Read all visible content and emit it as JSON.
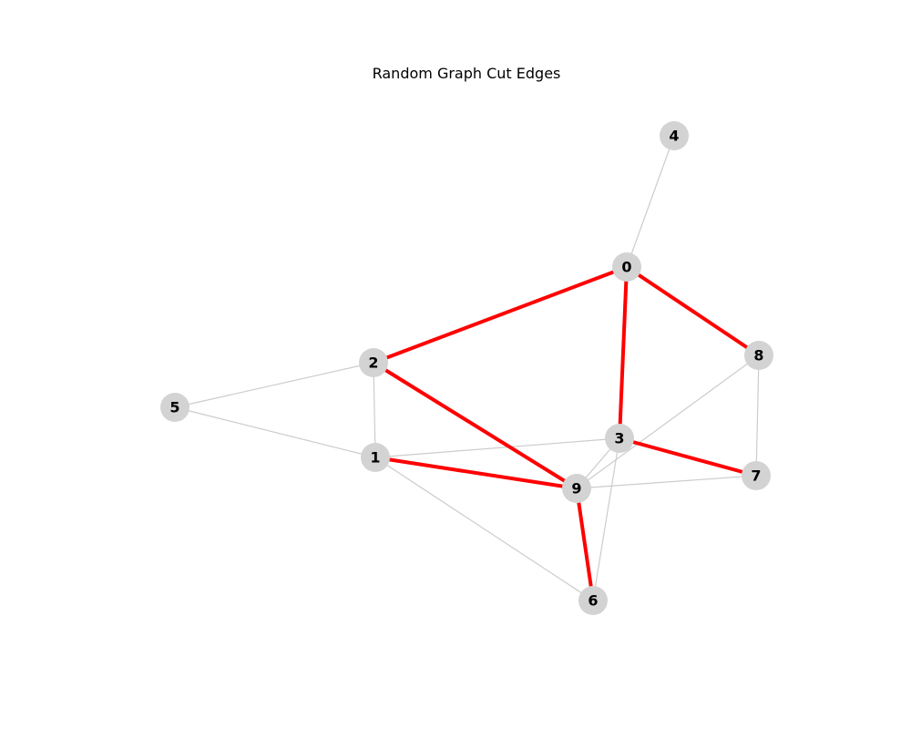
{
  "title": "Random Graph Cut Edges",
  "colors": {
    "node_fill": "#d3d3d3",
    "normal_edge": "#cccccc",
    "cut_edge": "#ff0000",
    "label": "#000000",
    "background": "#ffffff"
  },
  "graph": {
    "nodes": [
      {
        "id": "0",
        "label": "0"
      },
      {
        "id": "1",
        "label": "1"
      },
      {
        "id": "2",
        "label": "2"
      },
      {
        "id": "3",
        "label": "3"
      },
      {
        "id": "4",
        "label": "4"
      },
      {
        "id": "5",
        "label": "5"
      },
      {
        "id": "6",
        "label": "6"
      },
      {
        "id": "7",
        "label": "7"
      },
      {
        "id": "8",
        "label": "8"
      },
      {
        "id": "9",
        "label": "9"
      }
    ],
    "edges": [
      {
        "source": "0",
        "target": "4",
        "cut": false
      },
      {
        "source": "0",
        "target": "2",
        "cut": true
      },
      {
        "source": "0",
        "target": "3",
        "cut": true
      },
      {
        "source": "0",
        "target": "8",
        "cut": true
      },
      {
        "source": "2",
        "target": "5",
        "cut": false
      },
      {
        "source": "2",
        "target": "1",
        "cut": false
      },
      {
        "source": "2",
        "target": "9",
        "cut": true
      },
      {
        "source": "5",
        "target": "1",
        "cut": false
      },
      {
        "source": "1",
        "target": "3",
        "cut": false
      },
      {
        "source": "1",
        "target": "9",
        "cut": true
      },
      {
        "source": "1",
        "target": "6",
        "cut": false
      },
      {
        "source": "3",
        "target": "7",
        "cut": true
      },
      {
        "source": "3",
        "target": "9",
        "cut": false
      },
      {
        "source": "3",
        "target": "6",
        "cut": false
      },
      {
        "source": "8",
        "target": "9",
        "cut": false
      },
      {
        "source": "8",
        "target": "7",
        "cut": false
      },
      {
        "source": "9",
        "target": "7",
        "cut": false
      },
      {
        "source": "9",
        "target": "6",
        "cut": true
      }
    ]
  }
}
